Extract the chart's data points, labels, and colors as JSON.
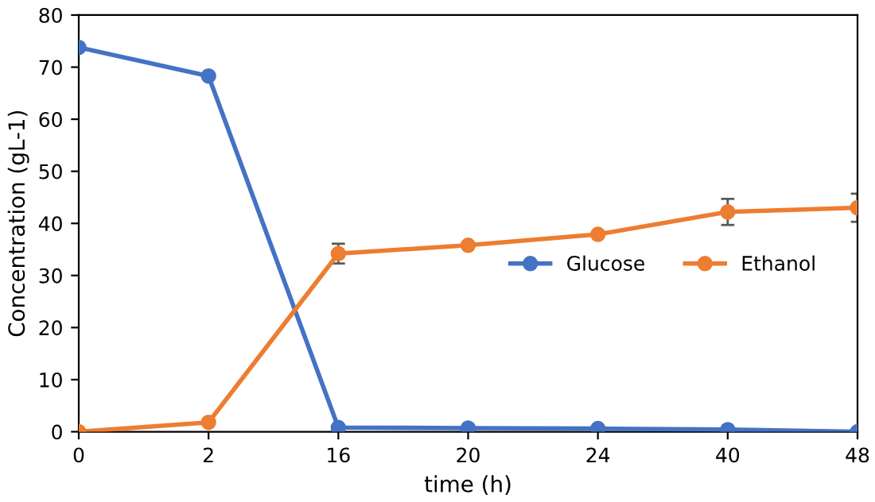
{
  "chart_data": {
    "type": "line",
    "xlabel": "time (h)",
    "ylabel": "Concentration (gL-1)",
    "categories": [
      "0",
      "2",
      "16",
      "20",
      "24",
      "40",
      "48"
    ],
    "series": [
      {
        "name": "Glucose",
        "color": "#4472c4",
        "values": [
          73.8,
          68.3,
          0.8,
          0.7,
          0.6,
          0.4,
          0
        ]
      },
      {
        "name": "Ethanol",
        "color": "#ed7d31",
        "values": [
          0,
          1.8,
          34.2,
          35.8,
          37.9,
          42.2,
          43.0
        ],
        "errors": [
          null,
          null,
          1.9,
          null,
          null,
          2.5,
          2.7
        ]
      }
    ],
    "ylim": [
      0,
      80
    ],
    "yticks": [
      0,
      10,
      20,
      30,
      40,
      50,
      60,
      70,
      80
    ],
    "grid": false,
    "legend": "center right",
    "marker": "circle",
    "line_style": "solid"
  }
}
